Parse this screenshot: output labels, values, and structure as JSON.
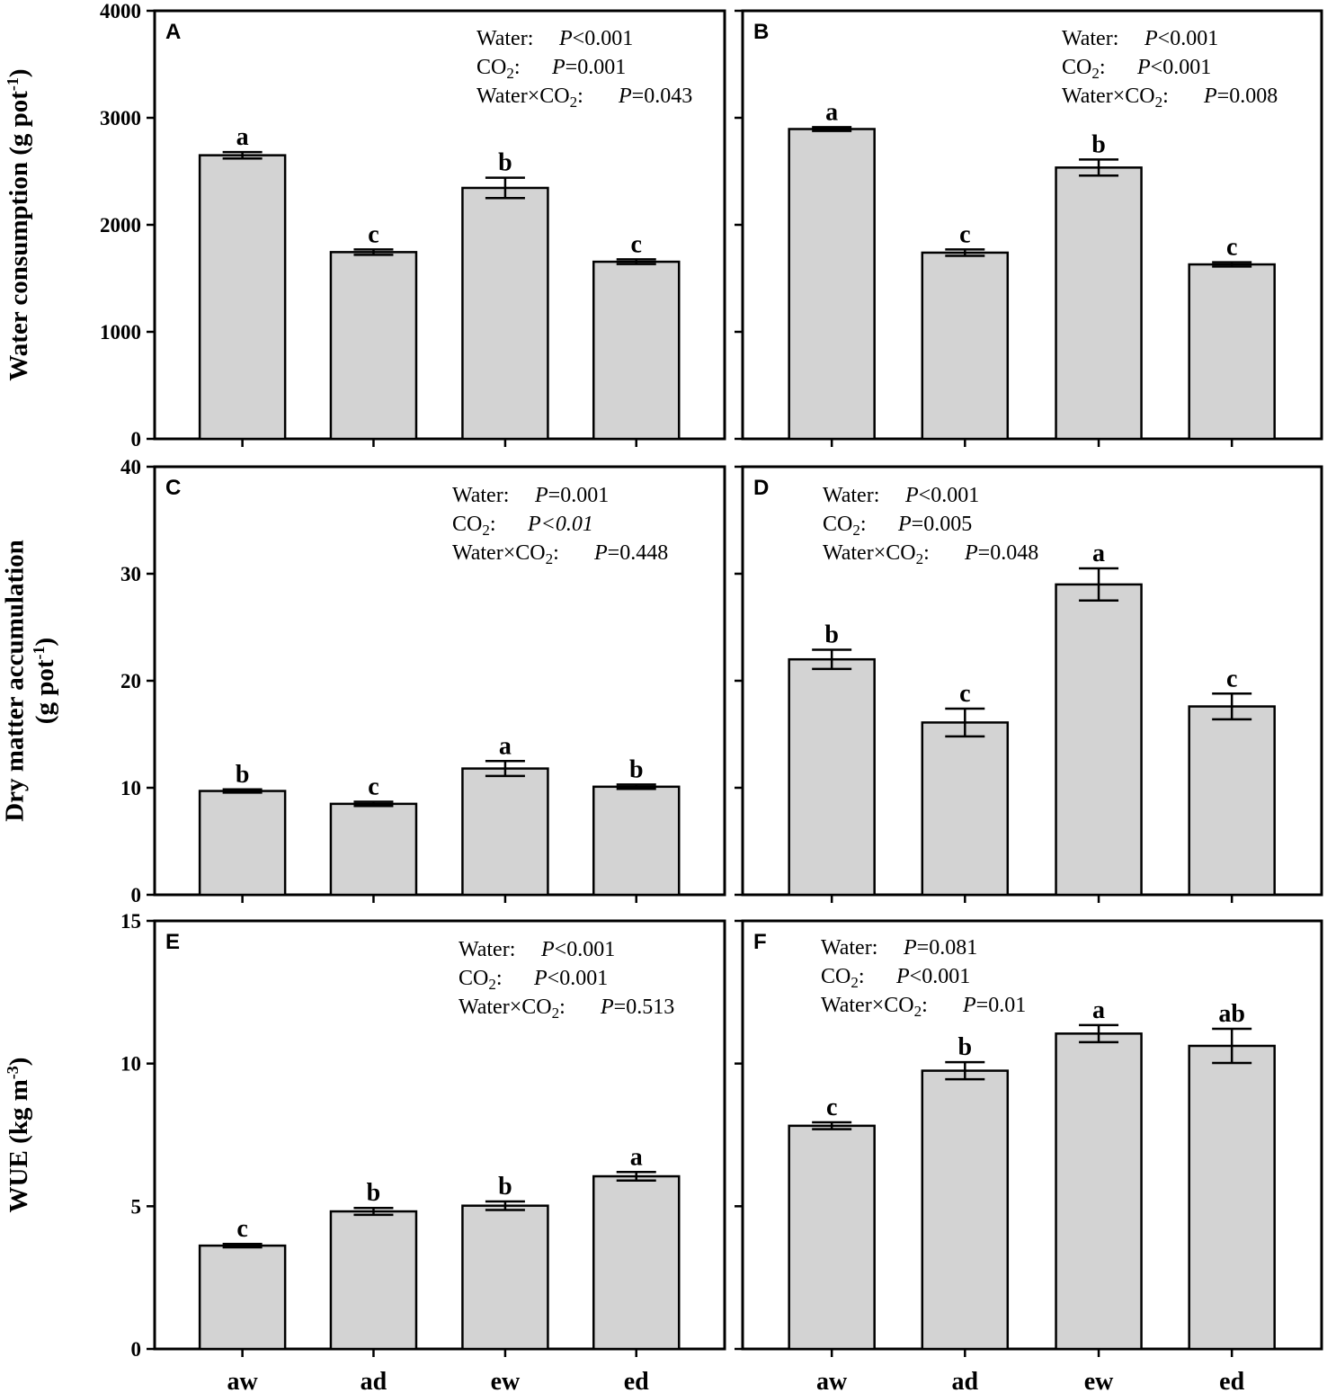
{
  "figure": {
    "x_categories": [
      "aw",
      "ad",
      "ew",
      "ed"
    ],
    "row_ylabels": [
      [
        "Water consumption (g pot",
        "-1",
        ")"
      ],
      [
        "Dry matter accumulation",
        "(g pot",
        "-1",
        ")"
      ],
      [
        "WUE (kg m",
        "-3",
        ")"
      ]
    ]
  },
  "chart_data": [
    {
      "panel": "A",
      "type": "bar",
      "categories": [
        "aw",
        "ad",
        "ew",
        "ed"
      ],
      "values": [
        2650,
        1745,
        2345,
        1655
      ],
      "errors": [
        30,
        25,
        95,
        22
      ],
      "letters": [
        "a",
        "c",
        "b",
        "c"
      ],
      "ylim": [
        0,
        4000
      ],
      "yticks": [
        0,
        1000,
        2000,
        3000,
        4000
      ],
      "show_ticklabels": true,
      "ylabel": "Water consumption (g pot-1)",
      "stats": [
        {
          "name": "Water:",
          "name_sub": "",
          "p": "P",
          "value": "<0.001",
          "value_italic": false
        },
        {
          "name": "CO",
          "name_sub": "2",
          "name_after": ":",
          "p": "P",
          "value": "=0.001",
          "value_italic": false
        },
        {
          "name": "Water×CO",
          "name_sub": "2",
          "name_after": ":",
          "p": "P",
          "value": "=0.043",
          "value_italic": false
        }
      ]
    },
    {
      "panel": "B",
      "type": "bar",
      "categories": [
        "aw",
        "ad",
        "ew",
        "ed"
      ],
      "values": [
        2895,
        1740,
        2535,
        1630
      ],
      "errors": [
        18,
        30,
        75,
        20
      ],
      "letters": [
        "a",
        "c",
        "b",
        "c"
      ],
      "ylim": [
        0,
        4000
      ],
      "yticks": [
        0,
        1000,
        2000,
        3000,
        4000
      ],
      "show_ticklabels": false,
      "stats": [
        {
          "name": "Water:",
          "name_sub": "",
          "p": "P",
          "value": "<0.001",
          "value_italic": false
        },
        {
          "name": "CO",
          "name_sub": "2",
          "name_after": ":",
          "p": "P",
          "value": "<0.001",
          "value_italic": false
        },
        {
          "name": "Water×CO",
          "name_sub": "2",
          "name_after": ":",
          "p": "P",
          "value": "=0.008",
          "value_italic": false
        }
      ]
    },
    {
      "panel": "C",
      "type": "bar",
      "categories": [
        "aw",
        "ad",
        "ew",
        "ed"
      ],
      "values": [
        9.7,
        8.5,
        11.8,
        10.1
      ],
      "errors": [
        0.15,
        0.2,
        0.7,
        0.2
      ],
      "letters": [
        "b",
        "c",
        "a",
        "b"
      ],
      "ylim": [
        0,
        40
      ],
      "yticks": [
        0,
        10,
        20,
        30,
        40
      ],
      "show_ticklabels": true,
      "ylabel": "Dry matter accumulation (g pot-1)",
      "stats": [
        {
          "name": "Water:",
          "name_sub": "",
          "p": "P",
          "value": "=0.001",
          "value_italic": false
        },
        {
          "name": "CO",
          "name_sub": "2",
          "name_after": ":",
          "p": "P",
          "value": "<0.01",
          "value_italic": true
        },
        {
          "name": "Water×CO",
          "name_sub": "2",
          "name_after": ":",
          "p": "P",
          "value": "=0.448",
          "value_italic": false
        }
      ]
    },
    {
      "panel": "D",
      "type": "bar",
      "categories": [
        "aw",
        "ad",
        "ew",
        "ed"
      ],
      "values": [
        22.0,
        16.1,
        29.0,
        17.6
      ],
      "errors": [
        0.9,
        1.3,
        1.5,
        1.2
      ],
      "letters": [
        "b",
        "c",
        "a",
        "c"
      ],
      "ylim": [
        0,
        40
      ],
      "yticks": [
        0,
        10,
        20,
        30,
        40
      ],
      "show_ticklabels": false,
      "stats": [
        {
          "name": "Water:",
          "name_sub": "",
          "p": "P",
          "value": "<0.001",
          "value_italic": false
        },
        {
          "name": "CO",
          "name_sub": "2",
          "name_after": ":",
          "p": "P",
          "value": "=0.005",
          "value_italic": false
        },
        {
          "name": "Water×CO",
          "name_sub": "2",
          "name_after": ":",
          "p": "P",
          "value": "=0.048",
          "value_italic": false
        }
      ]
    },
    {
      "panel": "E",
      "type": "bar",
      "categories": [
        "aw",
        "ad",
        "ew",
        "ed"
      ],
      "values": [
        3.62,
        4.82,
        5.02,
        6.05
      ],
      "errors": [
        0.06,
        0.12,
        0.15,
        0.15
      ],
      "letters": [
        "c",
        "b",
        "b",
        "a"
      ],
      "ylim": [
        0,
        15
      ],
      "yticks": [
        0,
        5,
        10,
        15
      ],
      "show_ticklabels": true,
      "ylabel": "WUE (kg m-3)",
      "stats": [
        {
          "name": "Water:",
          "name_sub": "",
          "p": "P",
          "value": "<0.001",
          "value_italic": false
        },
        {
          "name": "CO",
          "name_sub": "2",
          "name_after": ":",
          "p": "P",
          "value": "<0.001",
          "value_italic": false
        },
        {
          "name": "Water×CO",
          "name_sub": "2",
          "name_after": ":",
          "p": "P",
          "value": "=0.513",
          "value_italic": false
        }
      ]
    },
    {
      "panel": "F",
      "type": "bar",
      "categories": [
        "aw",
        "ad",
        "ew",
        "ed"
      ],
      "values": [
        7.82,
        9.75,
        11.05,
        10.62
      ],
      "errors": [
        0.12,
        0.3,
        0.3,
        0.6
      ],
      "letters": [
        "c",
        "b",
        "a",
        "ab"
      ],
      "ylim": [
        0,
        15
      ],
      "yticks": [
        0,
        5,
        10,
        15
      ],
      "show_ticklabels": false,
      "stats": [
        {
          "name": "Water:",
          "name_sub": "",
          "p": "P",
          "value": "=0.081",
          "value_italic": false
        },
        {
          "name": "CO",
          "name_sub": "2",
          "name_after": ":",
          "p": "P",
          "value": "<0.001",
          "value_italic": false
        },
        {
          "name": "Water×CO",
          "name_sub": "2",
          "name_after": ":",
          "p": "P",
          "value": "=0.01",
          "value_italic": false
        }
      ]
    }
  ]
}
